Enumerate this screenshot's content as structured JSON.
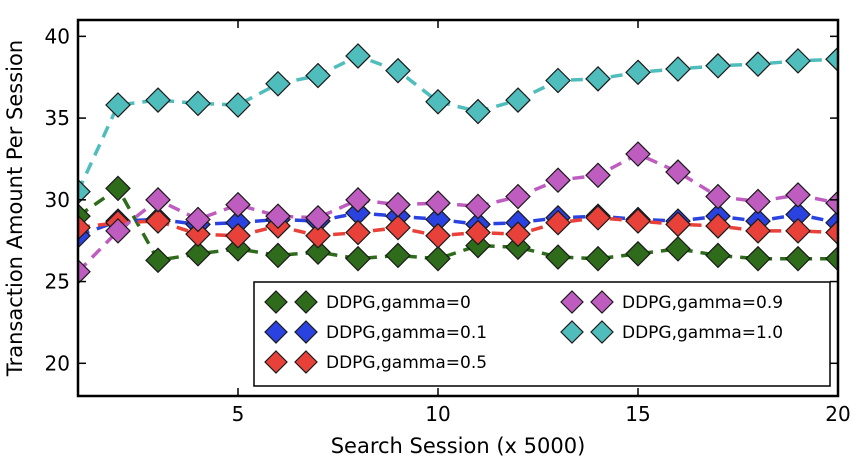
{
  "chart_data": {
    "type": "line",
    "title": "",
    "xlabel": "Search Session (x 5000)",
    "ylabel": "Transaction Amount Per Session",
    "xlim": [
      1,
      20
    ],
    "ylim": [
      18,
      41
    ],
    "xticks": [
      5,
      10,
      15,
      20
    ],
    "yticks": [
      20,
      25,
      30,
      35,
      40
    ],
    "x": [
      1,
      2,
      3,
      4,
      5,
      6,
      7,
      8,
      9,
      10,
      11,
      12,
      13,
      14,
      15,
      16,
      17,
      18,
      19,
      20
    ],
    "grid": false,
    "legend_position": "lower-right",
    "series": [
      {
        "name": "DDPG,gamma=0",
        "color": "#2e6b1a",
        "values": [
          29.0,
          30.7,
          26.3,
          26.7,
          27.0,
          26.6,
          26.8,
          26.4,
          26.6,
          26.4,
          27.2,
          27.1,
          26.5,
          26.4,
          26.7,
          27.0,
          26.6,
          26.4,
          26.4,
          26.4
        ]
      },
      {
        "name": "DDPG,gamma=0.1",
        "color": "#2a43e0",
        "values": [
          27.8,
          28.7,
          28.8,
          28.5,
          28.6,
          28.8,
          28.7,
          29.2,
          29.0,
          28.8,
          28.5,
          28.6,
          28.9,
          29.0,
          28.8,
          28.7,
          29.0,
          28.7,
          29.1,
          28.6
        ]
      },
      {
        "name": "DDPG,gamma=0.5",
        "color": "#e8413a",
        "values": [
          28.3,
          28.6,
          28.7,
          27.9,
          27.8,
          28.4,
          27.8,
          28.0,
          28.3,
          27.8,
          28.0,
          27.9,
          28.6,
          28.9,
          28.7,
          28.5,
          28.4,
          28.1,
          28.1,
          28.0
        ]
      },
      {
        "name": "DDPG,gamma=0.9",
        "color": "#bf5cbf",
        "values": [
          25.6,
          28.1,
          30.0,
          28.8,
          29.7,
          29.0,
          28.9,
          30.0,
          29.7,
          29.8,
          29.6,
          30.2,
          31.2,
          31.5,
          32.8,
          31.7,
          30.2,
          29.9,
          30.3,
          29.8
        ]
      },
      {
        "name": "DDPG,gamma=1.0",
        "color": "#4fbdbb",
        "values": [
          30.5,
          35.8,
          36.1,
          35.9,
          35.8,
          37.1,
          37.6,
          38.8,
          37.9,
          36.0,
          35.4,
          36.1,
          37.3,
          37.4,
          37.8,
          38.0,
          38.2,
          38.3,
          38.5,
          38.6
        ]
      }
    ]
  }
}
